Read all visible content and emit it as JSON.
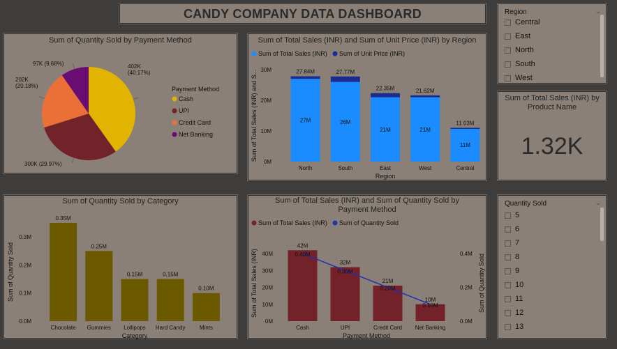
{
  "dashboard_title": "CANDY COMPANY DATA DASHBOARD",
  "region_slicer": {
    "header": "Region",
    "items": [
      "Central",
      "East",
      "North",
      "South",
      "West"
    ]
  },
  "card": {
    "title": "Sum of Total Sales (INR) by Product Name",
    "value": "1.32K"
  },
  "qty_slicer": {
    "header": "Quantity Sold",
    "items": [
      "5",
      "6",
      "7",
      "8",
      "9",
      "10",
      "11",
      "12",
      "13"
    ]
  },
  "colors": {
    "cash": "#e0b400",
    "upi": "#72232a",
    "credit_card": "#ea7038",
    "net_banking": "#6a0d73",
    "total_sales_blue": "#1a8cff",
    "unit_price_navy": "#1c2b8f",
    "category_bar": "#6b5900",
    "payment_bar": "#73222a",
    "line_blue": "#2030b0"
  },
  "chart_data": [
    {
      "id": "pie",
      "type": "pie",
      "title": "Sum of Quantity Sold by Payment Method",
      "legend_title": "Payment Method",
      "legend_position": "right",
      "slices": [
        {
          "name": "Cash",
          "value": 402000,
          "label": "402K",
          "pct": "(40.17%)"
        },
        {
          "name": "UPI",
          "value": 300000,
          "label": "300K (29.97%)",
          "pct": ""
        },
        {
          "name": "Credit Card",
          "value": 202000,
          "label": "202K",
          "pct": "(20.18%)"
        },
        {
          "name": "Net Banking",
          "value": 97000,
          "label": "97K (9.68%)",
          "pct": ""
        }
      ]
    },
    {
      "id": "region",
      "type": "bar",
      "title": "Sum of Total Sales (INR) and Sum of Unit Price (INR) by Region",
      "xlabel": "Region",
      "ylabel": "Sum of Total Sales (INR) and S...",
      "legend_position": "top-left",
      "categories": [
        "North",
        "South",
        "East",
        "West",
        "Central"
      ],
      "series": [
        {
          "name": "Sum of Total Sales (INR)",
          "values": [
            27,
            26,
            21,
            21,
            11
          ],
          "labels": [
            "27M",
            "26M",
            "21M",
            "21M",
            "11M"
          ]
        },
        {
          "name": "Sum of Unit Price (INR)",
          "values": [
            0.84,
            1.77,
            1.35,
            0.62,
            0.03
          ]
        }
      ],
      "totals": [
        "27.84M",
        "27.77M",
        "22.35M",
        "21.62M",
        "11.03M"
      ],
      "yticks": [
        "0M",
        "10M",
        "20M",
        "30M"
      ],
      "ylim": [
        0,
        30
      ]
    },
    {
      "id": "category",
      "type": "bar",
      "title": "Sum of Quantity Sold by Category",
      "xlabel": "Category",
      "ylabel": "Sum of Quantity Sold",
      "categories": [
        "Chocolate",
        "Gummies",
        "Lollipops",
        "Hard Candy",
        "Mints"
      ],
      "values": [
        0.35,
        0.25,
        0.15,
        0.15,
        0.1
      ],
      "labels": [
        "0.35M",
        "0.25M",
        "0.15M",
        "0.15M",
        "0.10M"
      ],
      "yticks": [
        "0.0M",
        "0.1M",
        "0.2M",
        "0.3M"
      ],
      "ylim": [
        0,
        0.35
      ]
    },
    {
      "id": "payment",
      "type": "bar",
      "title": "Sum of Total Sales (INR) and Sum of Quantity Sold by Payment Method",
      "xlabel": "Payment Method",
      "ylabel": "Sum of Total Sales (INR)",
      "y2label": "Sum of Quantity Sold",
      "legend_position": "top-left",
      "categories": [
        "Cash",
        "UPI",
        "Credit Card",
        "Net Banking"
      ],
      "series": [
        {
          "name": "Sum of Total Sales (INR)",
          "values": [
            42,
            32,
            21,
            10
          ],
          "labels": [
            "42M",
            "32M",
            "21M",
            "10M"
          ]
        },
        {
          "name": "Sum of Quantity Sold",
          "values": [
            0.4,
            0.3,
            0.2,
            0.1
          ],
          "labels": [
            "0.40M",
            "0.30M",
            "0.20M",
            "0.10M"
          ]
        }
      ],
      "yticks": [
        "0M",
        "10M",
        "20M",
        "30M",
        "40M"
      ],
      "y2ticks": [
        "0.0M",
        "0.2M",
        "0.4M"
      ],
      "ylim": [
        0,
        45
      ],
      "y2lim": [
        0,
        0.45
      ]
    }
  ]
}
